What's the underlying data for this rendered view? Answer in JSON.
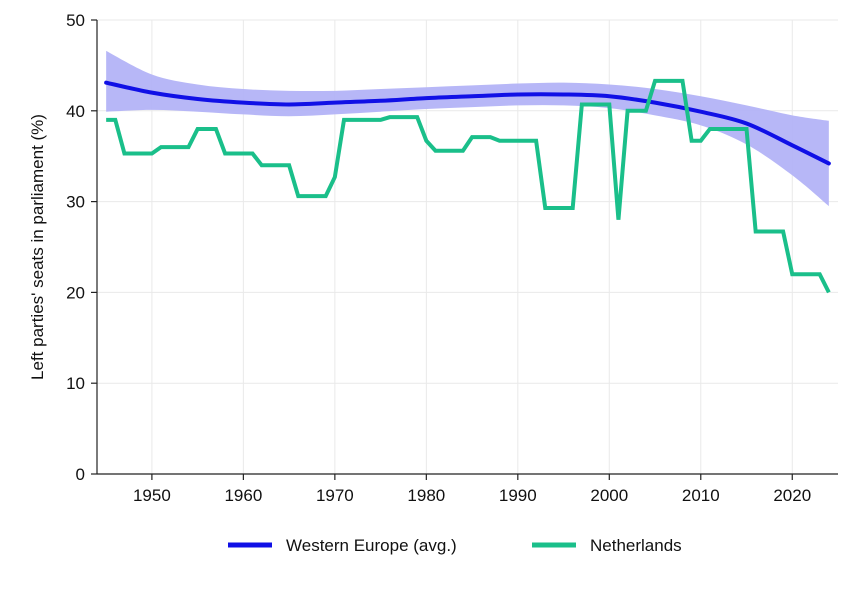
{
  "chart_data": {
    "type": "line",
    "title": "",
    "xlabel": "",
    "ylabel": "Left parties' seats in parliament (%)",
    "xlim": [
      1944,
      2025
    ],
    "ylim": [
      0,
      50
    ],
    "x_ticks": [
      1950,
      1960,
      1970,
      1980,
      1990,
      2000,
      2010,
      2020
    ],
    "y_ticks": [
      0,
      10,
      20,
      30,
      40,
      50
    ],
    "grid": true,
    "legend": "bottom",
    "colors": {
      "western_europe": "#1010e6",
      "band": "#b3b3f7",
      "netherlands": "#1abf8a"
    },
    "series": [
      {
        "name": "Western Europe (avg.)",
        "style": "smooth",
        "points": [
          [
            1945,
            43.1
          ],
          [
            1950,
            42.0
          ],
          [
            1955,
            41.3
          ],
          [
            1960,
            40.9
          ],
          [
            1965,
            40.7
          ],
          [
            1970,
            40.9
          ],
          [
            1975,
            41.1
          ],
          [
            1980,
            41.4
          ],
          [
            1985,
            41.6
          ],
          [
            1990,
            41.8
          ],
          [
            1995,
            41.8
          ],
          [
            2000,
            41.6
          ],
          [
            2005,
            40.9
          ],
          [
            2010,
            39.9
          ],
          [
            2015,
            38.6
          ],
          [
            2020,
            36.2
          ],
          [
            2024,
            34.2
          ]
        ],
        "ci_upper": [
          [
            1945,
            46.6
          ],
          [
            1950,
            44.0
          ],
          [
            1955,
            42.9
          ],
          [
            1960,
            42.4
          ],
          [
            1965,
            42.2
          ],
          [
            1970,
            42.2
          ],
          [
            1975,
            42.4
          ],
          [
            1980,
            42.6
          ],
          [
            1985,
            42.8
          ],
          [
            1990,
            43.0
          ],
          [
            1995,
            43.1
          ],
          [
            2000,
            42.9
          ],
          [
            2005,
            42.4
          ],
          [
            2010,
            41.6
          ],
          [
            2015,
            40.6
          ],
          [
            2020,
            39.5
          ],
          [
            2024,
            38.9
          ]
        ],
        "ci_lower": [
          [
            1945,
            39.9
          ],
          [
            1950,
            40.1
          ],
          [
            1955,
            39.9
          ],
          [
            1960,
            39.6
          ],
          [
            1965,
            39.4
          ],
          [
            1970,
            39.6
          ],
          [
            1975,
            39.9
          ],
          [
            1980,
            40.2
          ],
          [
            1985,
            40.4
          ],
          [
            1990,
            40.6
          ],
          [
            1995,
            40.6
          ],
          [
            2000,
            40.3
          ],
          [
            2005,
            39.5
          ],
          [
            2010,
            38.4
          ],
          [
            2015,
            36.3
          ],
          [
            2020,
            32.9
          ],
          [
            2024,
            29.5
          ]
        ]
      },
      {
        "name": "Netherlands",
        "style": "linear",
        "points": [
          [
            1945,
            39.0
          ],
          [
            1946,
            39.0
          ],
          [
            1947,
            35.3
          ],
          [
            1950,
            35.3
          ],
          [
            1951,
            36.0
          ],
          [
            1954,
            36.0
          ],
          [
            1955,
            38.0
          ],
          [
            1957,
            38.0
          ],
          [
            1958,
            35.3
          ],
          [
            1961,
            35.3
          ],
          [
            1962,
            34.0
          ],
          [
            1965,
            34.0
          ],
          [
            1966,
            30.6
          ],
          [
            1969,
            30.6
          ],
          [
            1970,
            32.7
          ],
          [
            1971,
            39.0
          ],
          [
            1975,
            39.0
          ],
          [
            1976,
            39.3
          ],
          [
            1979,
            39.3
          ],
          [
            1980,
            36.7
          ],
          [
            1981,
            35.6
          ],
          [
            1984,
            35.6
          ],
          [
            1985,
            37.1
          ],
          [
            1987,
            37.1
          ],
          [
            1988,
            36.7
          ],
          [
            1992,
            36.7
          ],
          [
            1993,
            29.3
          ],
          [
            1996,
            29.3
          ],
          [
            1997,
            40.7
          ],
          [
            2000,
            40.7
          ],
          [
            2001,
            28.0
          ],
          [
            2002,
            40.0
          ],
          [
            2004,
            40.0
          ],
          [
            2005,
            43.3
          ],
          [
            2008,
            43.3
          ],
          [
            2009,
            36.7
          ],
          [
            2010,
            36.7
          ],
          [
            2011,
            38.0
          ],
          [
            2015,
            38.0
          ],
          [
            2016,
            26.7
          ],
          [
            2019,
            26.7
          ],
          [
            2020,
            22.0
          ],
          [
            2023,
            22.0
          ],
          [
            2024,
            20.0
          ]
        ]
      }
    ]
  }
}
